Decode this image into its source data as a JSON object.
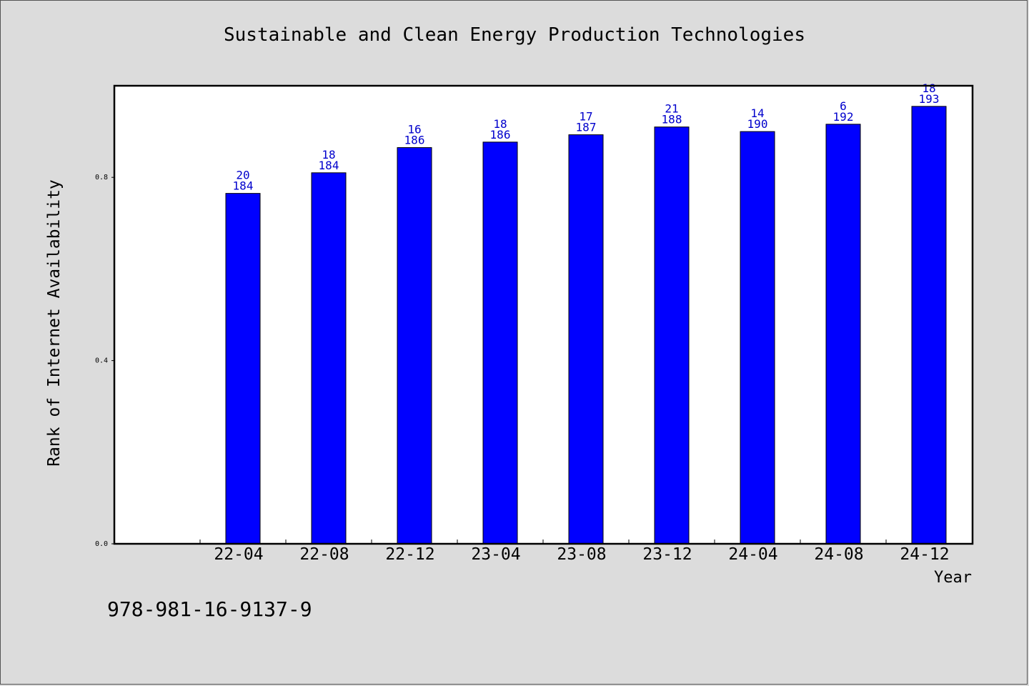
{
  "chart_data": {
    "type": "bar",
    "title": "Sustainable and Clean Energy Production Technologies",
    "xlabel": "Year",
    "ylabel": "Rank of Internet Availability",
    "categories": [
      "22-04",
      "22-08",
      "22-12",
      "23-04",
      "23-08",
      "23-12",
      "24-04",
      "24-08",
      "24-12"
    ],
    "values": [
      0.765,
      0.81,
      0.865,
      0.877,
      0.893,
      0.91,
      0.9,
      0.916,
      0.955
    ],
    "label_top": [
      "20",
      "18",
      "16",
      "18",
      "17",
      "21",
      "14",
      "6",
      "18"
    ],
    "label_bottom": [
      "184",
      "184",
      "186",
      "186",
      "187",
      "188",
      "190",
      "192",
      "193"
    ],
    "yticks": [
      "0.0",
      "0.4",
      "0.8"
    ],
    "ylim": [
      0,
      1.0
    ],
    "grid": false,
    "bar_color": "#0000ff",
    "label_color": "#0000cc"
  },
  "footer": {
    "isbn": "978-981-16-9137-9"
  }
}
